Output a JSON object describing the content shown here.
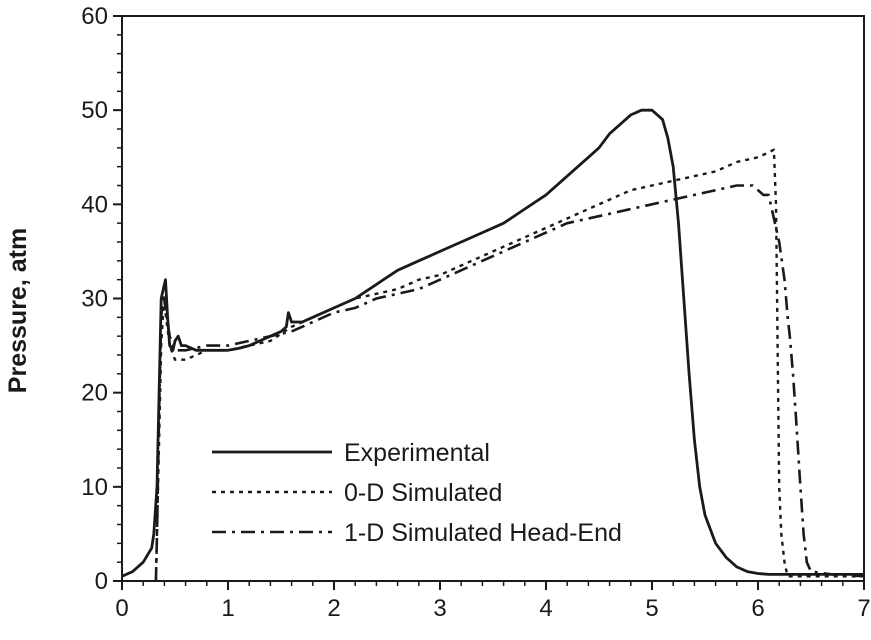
{
  "chart_data": {
    "type": "line",
    "title": "",
    "xlabel": "",
    "ylabel": "Pressure, atm",
    "xlim": [
      0,
      7
    ],
    "ylim": [
      0,
      60
    ],
    "xticks": [
      "0",
      "1",
      "2",
      "3",
      "4",
      "5",
      "6",
      "7"
    ],
    "yticks": [
      "0",
      "10",
      "20",
      "30",
      "40",
      "50",
      "60"
    ],
    "grid": false,
    "legend_position": "bottom-left",
    "series": [
      {
        "name": "Experimental",
        "style": "solid",
        "x": [
          0.0,
          0.1,
          0.2,
          0.28,
          0.3,
          0.33,
          0.35,
          0.37,
          0.39,
          0.41,
          0.43,
          0.45,
          0.48,
          0.5,
          0.53,
          0.56,
          0.6,
          0.7,
          0.8,
          0.9,
          1.0,
          1.1,
          1.2,
          1.3,
          1.4,
          1.5,
          1.55,
          1.57,
          1.6,
          1.7,
          1.8,
          2.0,
          2.2,
          2.4,
          2.6,
          2.8,
          3.0,
          3.2,
          3.4,
          3.6,
          3.8,
          4.0,
          4.2,
          4.4,
          4.5,
          4.6,
          4.7,
          4.8,
          4.9,
          5.0,
          5.1,
          5.15,
          5.2,
          5.25,
          5.3,
          5.35,
          5.4,
          5.45,
          5.5,
          5.6,
          5.7,
          5.8,
          5.9,
          6.0,
          6.1,
          6.2,
          6.4,
          6.6,
          6.8,
          7.0
        ],
        "y": [
          0.5,
          1.0,
          2.0,
          3.5,
          5.0,
          10.0,
          20.0,
          30.0,
          31.0,
          32.0,
          28.0,
          25.0,
          24.5,
          25.5,
          26.0,
          25.0,
          25.0,
          24.5,
          24.5,
          24.5,
          24.5,
          24.7,
          25.0,
          25.5,
          26.0,
          26.5,
          27.0,
          28.5,
          27.5,
          27.5,
          28.0,
          29.0,
          30.0,
          31.5,
          33.0,
          34.0,
          35.0,
          36.0,
          37.0,
          38.0,
          39.5,
          41.0,
          43.0,
          45.0,
          46.0,
          47.5,
          48.5,
          49.5,
          50.0,
          50.0,
          49.0,
          47.0,
          44.0,
          38.0,
          30.0,
          22.0,
          15.0,
          10.0,
          7.0,
          4.0,
          2.5,
          1.5,
          1.0,
          0.8,
          0.7,
          0.7,
          0.7,
          0.7,
          0.7,
          0.7
        ]
      },
      {
        "name": "0-D Simulated",
        "style": "dotted",
        "x": [
          0.32,
          0.33,
          0.35,
          0.37,
          0.39,
          0.41,
          0.45,
          0.5,
          0.6,
          0.7,
          0.8,
          1.0,
          1.2,
          1.4,
          1.6,
          1.8,
          2.0,
          2.2,
          2.4,
          2.6,
          2.8,
          3.0,
          3.2,
          3.4,
          3.6,
          3.8,
          4.0,
          4.2,
          4.4,
          4.6,
          4.8,
          5.0,
          5.2,
          5.4,
          5.6,
          5.8,
          6.0,
          6.1,
          6.15,
          6.17,
          6.18,
          6.19,
          6.2,
          6.22,
          6.25,
          6.27,
          6.28,
          6.3,
          6.5,
          6.7,
          7.0
        ],
        "y": [
          0.0,
          5.0,
          15.0,
          25.0,
          29.0,
          28.5,
          25.0,
          23.5,
          23.5,
          24.0,
          24.5,
          24.5,
          25.0,
          25.5,
          27.0,
          28.0,
          29.0,
          30.0,
          30.5,
          31.0,
          32.0,
          32.5,
          33.5,
          34.5,
          35.5,
          36.5,
          37.5,
          38.5,
          39.5,
          40.5,
          41.5,
          42.0,
          42.5,
          43.0,
          43.5,
          44.5,
          45.0,
          45.5,
          45.8,
          40.0,
          30.0,
          20.0,
          10.0,
          5.0,
          2.0,
          1.0,
          0.5,
          0.5,
          0.5,
          0.5,
          0.5
        ]
      },
      {
        "name": "1-D Simulated Head-End",
        "style": "dashdot",
        "x": [
          0.32,
          0.33,
          0.35,
          0.37,
          0.39,
          0.41,
          0.45,
          0.5,
          0.6,
          0.8,
          1.0,
          1.2,
          1.4,
          1.6,
          1.8,
          2.0,
          2.2,
          2.4,
          2.6,
          2.8,
          3.0,
          3.2,
          3.4,
          3.6,
          3.8,
          4.0,
          4.2,
          4.4,
          4.6,
          4.8,
          5.0,
          5.2,
          5.4,
          5.6,
          5.8,
          5.95,
          6.0,
          6.05,
          6.1,
          6.2,
          6.25,
          6.28,
          6.3,
          6.33,
          6.36,
          6.4,
          6.43,
          6.46,
          6.5,
          6.7,
          7.0
        ],
        "y": [
          0.0,
          5.0,
          18.0,
          28.0,
          30.5,
          29.0,
          26.0,
          24.5,
          24.5,
          25.0,
          25.0,
          25.5,
          26.0,
          26.5,
          27.5,
          28.5,
          29.0,
          30.0,
          30.5,
          31.0,
          32.0,
          33.0,
          34.0,
          35.0,
          36.0,
          37.0,
          38.0,
          38.5,
          39.0,
          39.5,
          40.0,
          40.5,
          41.0,
          41.5,
          42.0,
          42.0,
          41.5,
          41.0,
          41.0,
          36.0,
          32.0,
          28.0,
          26.0,
          22.0,
          17.0,
          10.0,
          5.0,
          2.0,
          1.0,
          0.7,
          0.5
        ]
      }
    ]
  }
}
